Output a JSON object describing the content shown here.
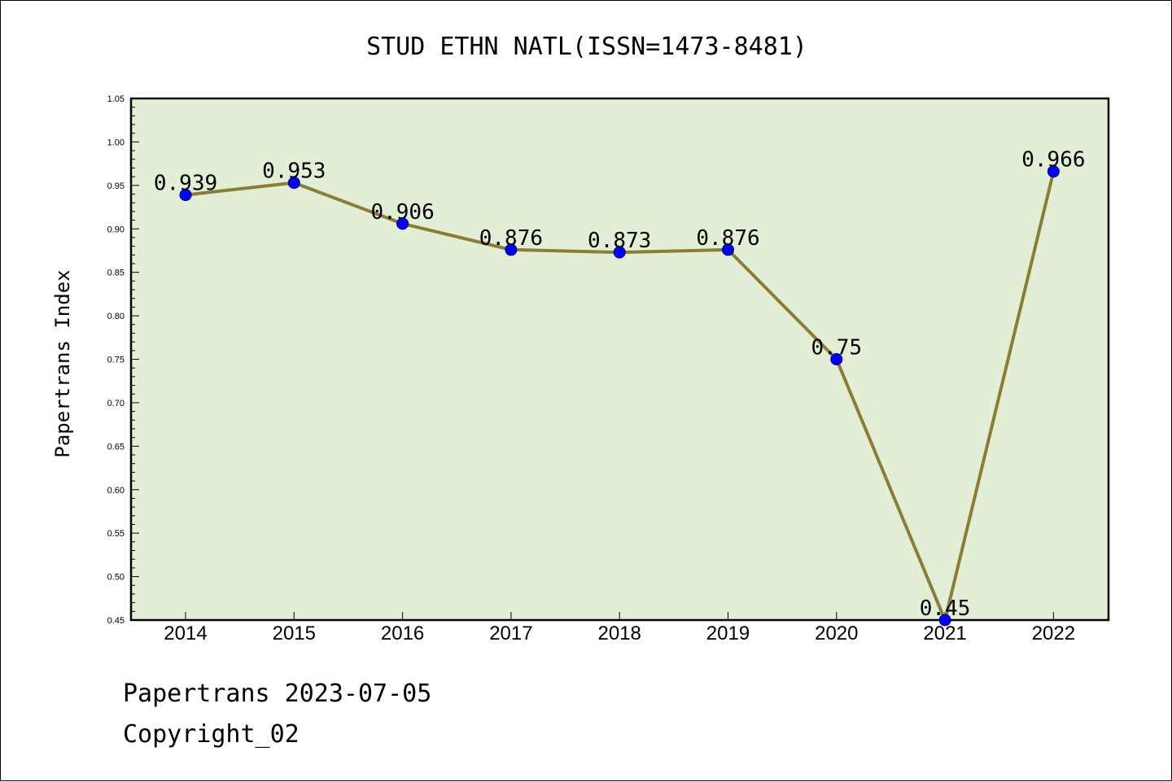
{
  "chart_data": {
    "type": "line",
    "title": "STUD ETHN NATL(ISSN=1473-8481)",
    "xlabel": "",
    "ylabel": "Papertrans Index",
    "categories": [
      "2014",
      "2015",
      "2016",
      "2017",
      "2018",
      "2019",
      "2020",
      "2021",
      "2022"
    ],
    "series": [
      {
        "values": [
          0.939,
          0.953,
          0.906,
          0.876,
          0.873,
          0.876,
          0.75,
          0.45,
          0.966
        ],
        "data_labels": [
          "0.939",
          "0.953",
          "0.906",
          "0.876",
          "0.873",
          "0.876",
          "0.75",
          "0.45",
          "0.966"
        ]
      }
    ],
    "ylim": [
      0.45,
      1.05
    ],
    "yticks": [
      "0.45",
      "0.50",
      "0.55",
      "0.60",
      "0.65",
      "0.70",
      "0.75",
      "0.80",
      "0.85",
      "0.90",
      "0.95",
      "1.00",
      "1.05"
    ],
    "grid": false,
    "legend": "none",
    "colors": {
      "plot_background": "#e2efd6",
      "line": "#8b7d36",
      "marker": "#0000ff",
      "marker_edge": "#000080"
    }
  },
  "footer": {
    "date_line": "Papertrans 2023-07-05",
    "copyright_line": "Copyright_02"
  }
}
